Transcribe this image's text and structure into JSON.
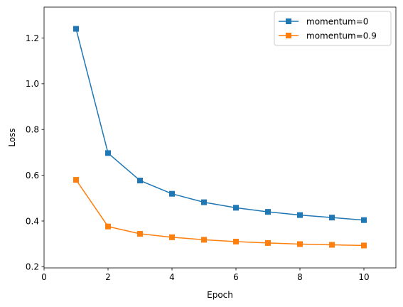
{
  "chart_data": {
    "type": "line",
    "title": "",
    "xlabel": "Epoch",
    "ylabel": "Loss",
    "xlim": [
      0,
      11
    ],
    "ylim": [
      0.195,
      1.335
    ],
    "xticks": [
      0,
      2,
      4,
      6,
      8,
      10
    ],
    "yticks": [
      0.2,
      0.4,
      0.6,
      0.8,
      1.0,
      1.2
    ],
    "xtick_labels": [
      "0",
      "2",
      "4",
      "6",
      "8",
      "10"
    ],
    "ytick_labels": [
      "0.2",
      "0.4",
      "0.6",
      "0.8",
      "1.0",
      "1.2"
    ],
    "grid": false,
    "legend_position": "top-right",
    "x": [
      1,
      2,
      3,
      4,
      5,
      6,
      7,
      8,
      9,
      10
    ],
    "series": [
      {
        "name": "momentum=0",
        "color": "#1f77b4",
        "marker": "square",
        "values": [
          1.24,
          0.697,
          0.577,
          0.519,
          0.482,
          0.458,
          0.44,
          0.426,
          0.415,
          0.404
        ]
      },
      {
        "name": "momentum=0.9",
        "color": "#ff7f0e",
        "marker": "square",
        "values": [
          0.58,
          0.376,
          0.344,
          0.329,
          0.318,
          0.31,
          0.304,
          0.299,
          0.296,
          0.293
        ]
      }
    ]
  }
}
